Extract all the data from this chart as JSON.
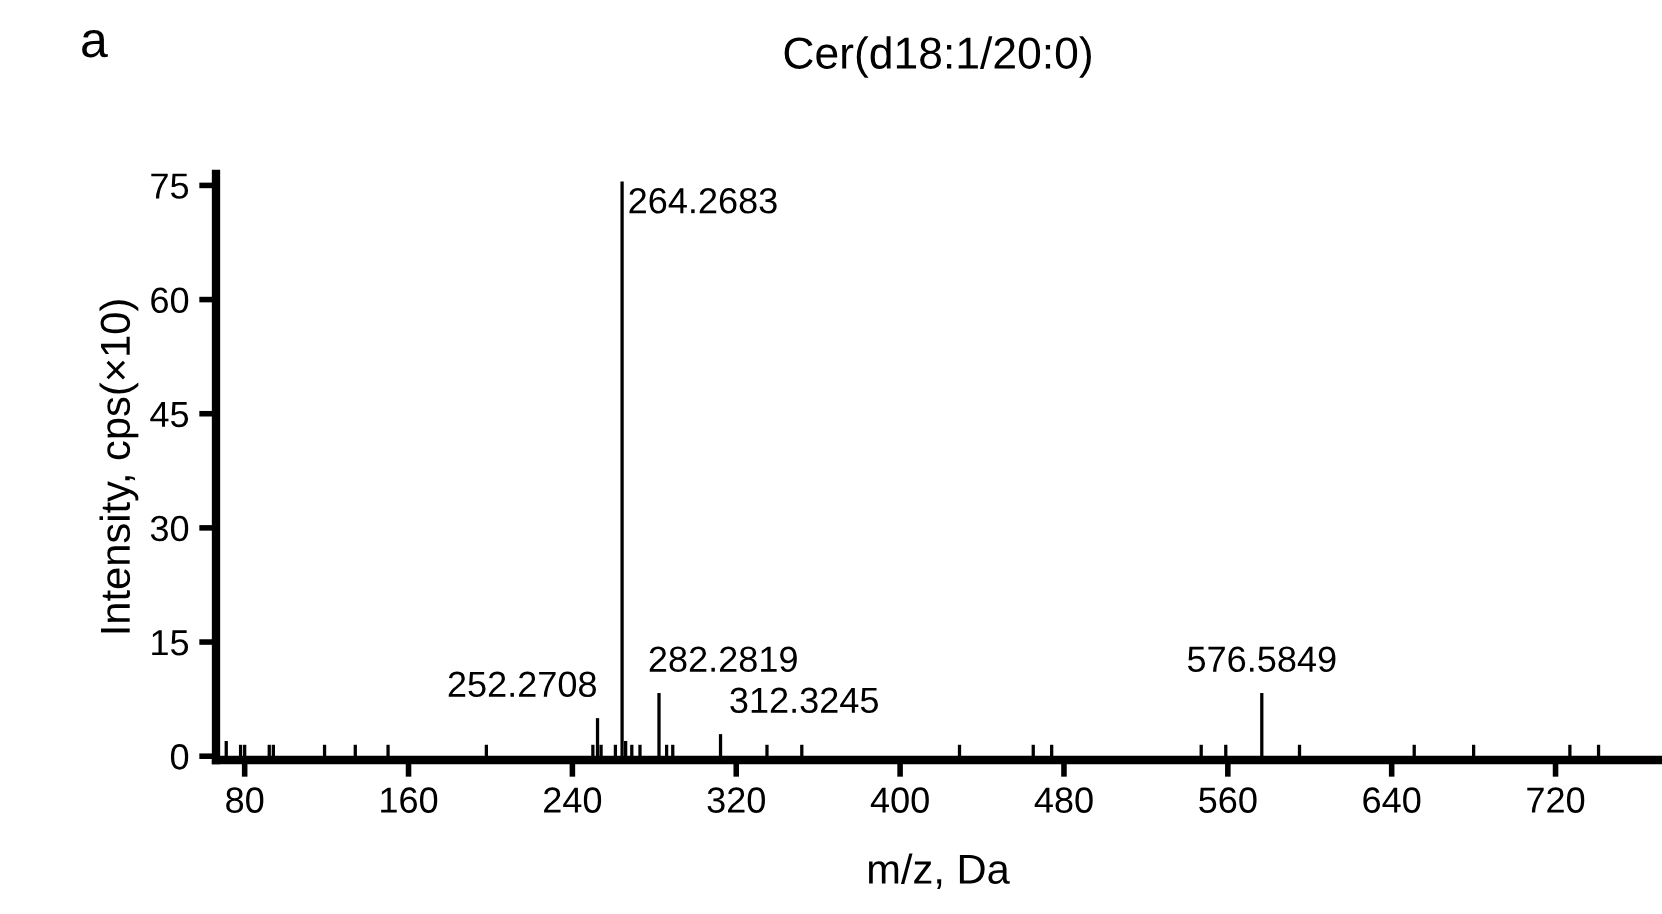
{
  "chart_data": {
    "type": "bar",
    "title": "Cer(d18:1/20:0)",
    "xlabel": "m/z, Da",
    "ylabel": "Intensity, cps(×10)",
    "x": [
      71,
      78,
      80,
      92,
      94,
      119,
      134,
      150,
      198,
      250,
      252.2708,
      254,
      261,
      264.2683,
      266,
      269,
      273,
      282.2819,
      286,
      289,
      312.3245,
      335,
      352,
      429,
      465,
      474,
      547,
      559,
      576.5849,
      595,
      651,
      680,
      727,
      741
    ],
    "values": [
      2,
      1.5,
      1.5,
      1.5,
      1.5,
      1.5,
      1.5,
      1.5,
      1.5,
      1.5,
      5,
      1.5,
      1.5,
      75.5,
      2,
      1.5,
      1.5,
      8.3,
      1.5,
      1.5,
      2.9,
      1.5,
      1.5,
      1.5,
      1.5,
      1.5,
      1.5,
      1.5,
      8.3,
      1.5,
      1.5,
      1.5,
      1.5,
      1.5
    ],
    "color": "#000000",
    "xlim": [
      66,
      771
    ],
    "xticks": [
      80,
      160,
      240,
      320,
      400,
      480,
      560,
      640,
      720
    ],
    "ylim": [
      -0.5,
      76.5
    ],
    "yticks": [
      0,
      15,
      30,
      45,
      60,
      75
    ],
    "grid": false,
    "annotations": [
      {
        "text": "264.2683",
        "x": 264.2683,
        "y": 75.5
      },
      {
        "text": "252.2708",
        "x": 252.2708,
        "y": 5
      },
      {
        "text": "282.2819",
        "x": 282.2819,
        "y": 8.3
      },
      {
        "text": "312.3245",
        "x": 312.3245,
        "y": 2.9
      },
      {
        "text": "576.5849",
        "x": 576.5849,
        "y": 8.3
      },
      "a"
    ]
  }
}
